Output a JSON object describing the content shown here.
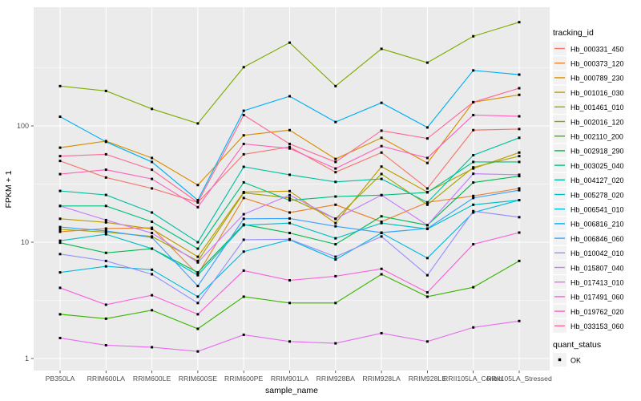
{
  "chart_data": {
    "type": "line",
    "title": "",
    "xlabel": "sample_name",
    "ylabel": "FPKM + 1",
    "y_scale": "log10",
    "y_ticks": [
      1,
      10,
      100
    ],
    "ylim": [
      1,
      1000
    ],
    "grid": true,
    "legend_position": "right",
    "panel_background": "#EBEBEB",
    "gridline_color": "#FFFFFF",
    "point_color": "#000000",
    "categories": [
      "PB350LA",
      "RRIM600LA",
      "RRIM600LE",
      "RRIM600SE",
      "RRIM600PE",
      "RRIM901LA",
      "RRIM928BA",
      "RRIM928LA",
      "RRIM928LE",
      "RRII105LA_Control",
      "RRII105LA_Stressed"
    ],
    "legend": {
      "series_title": "tracking_id",
      "status_title": "quant_status",
      "status_label": "OK"
    },
    "series": [
      {
        "name": "Hb_000331_450",
        "color": "#F8766D",
        "values_fpkm_plus_1": [
          50,
          36,
          29,
          22,
          57,
          66,
          40,
          59,
          29,
          92,
          94
        ]
      },
      {
        "name": "Hb_000373_120",
        "color": "#EA8331",
        "values_fpkm_plus_1": [
          12.3,
          13.1,
          13.3,
          5.3,
          24,
          18,
          21,
          15,
          22,
          25,
          29
        ]
      },
      {
        "name": "Hb_000789_230",
        "color": "#D89000",
        "values_fpkm_plus_1": [
          65,
          74,
          53,
          31,
          83,
          92,
          52,
          79,
          48,
          160,
          185
        ]
      },
      {
        "name": "Hb_001016_030",
        "color": "#C09B00",
        "values_fpkm_plus_1": [
          15.9,
          14.8,
          13,
          7.5,
          27,
          27.5,
          14.6,
          44.7,
          27,
          43,
          59
        ]
      },
      {
        "name": "Hb_001461_010",
        "color": "#A3A500",
        "values_fpkm_plus_1": [
          12.9,
          12.2,
          11.2,
          6.9,
          26.6,
          24,
          15.9,
          38.6,
          21,
          44,
          55
        ]
      },
      {
        "name": "Hb_002016_120",
        "color": "#7CAE00",
        "values_fpkm_plus_1": [
          220,
          200,
          140,
          105,
          320,
          520,
          220,
          460,
          350,
          590,
          780
        ]
      },
      {
        "name": "Hb_002110_200",
        "color": "#39B600",
        "values_fpkm_plus_1": [
          2.4,
          2.2,
          2.6,
          1.8,
          3.4,
          3.0,
          3.0,
          5.3,
          3.4,
          4.1,
          6.9
        ]
      },
      {
        "name": "Hb_002918_290",
        "color": "#00BB4E",
        "values_fpkm_plus_1": [
          9.9,
          8.1,
          8.8,
          5.5,
          14.2,
          12,
          9.6,
          16.7,
          14,
          32.6,
          37
        ]
      },
      {
        "name": "Hb_003025_040",
        "color": "#00BF7D",
        "values_fpkm_plus_1": [
          20.5,
          20.5,
          15,
          8.8,
          32.7,
          22.9,
          24.7,
          25.4,
          26.8,
          49,
          49
        ]
      },
      {
        "name": "Hb_004127_020",
        "color": "#00C1A3",
        "values_fpkm_plus_1": [
          27.6,
          25.5,
          18,
          10,
          44.5,
          38,
          33,
          35,
          22,
          56,
          79
        ]
      },
      {
        "name": "Hb_005278_020",
        "color": "#00BFC4",
        "values_fpkm_plus_1": [
          10.3,
          11.7,
          8.8,
          5.2,
          14,
          14.6,
          10.8,
          14.6,
          13,
          21,
          23
        ]
      },
      {
        "name": "Hb_006541_010",
        "color": "#00BAE0",
        "values_fpkm_plus_1": [
          5.5,
          6.2,
          5.8,
          3.4,
          8.3,
          10.5,
          7.1,
          12,
          7.3,
          18,
          23
        ]
      },
      {
        "name": "Hb_006816_210",
        "color": "#00B0F6",
        "values_fpkm_plus_1": [
          120,
          73,
          49,
          23,
          135,
          180,
          108,
          158,
          97,
          300,
          276
        ]
      },
      {
        "name": "Hb_006846_060",
        "color": "#35A2FF",
        "values_fpkm_plus_1": [
          13.5,
          12.5,
          11,
          4.2,
          15.9,
          16,
          13.7,
          12.1,
          13.1,
          24,
          28
        ]
      },
      {
        "name": "Hb_010042_010",
        "color": "#9590FF",
        "values_fpkm_plus_1": [
          7.9,
          6.9,
          5.3,
          3.0,
          10.5,
          10.6,
          7.5,
          11.2,
          5.2,
          18.5,
          16.4
        ]
      },
      {
        "name": "Hb_015807_040",
        "color": "#C77CFF",
        "values_fpkm_plus_1": [
          20.5,
          15.5,
          12,
          6.7,
          17.4,
          25.4,
          15.9,
          25.4,
          14,
          38.8,
          38
        ]
      },
      {
        "name": "Hb_017413_010",
        "color": "#E76BF3",
        "values_fpkm_plus_1": [
          1.5,
          1.3,
          1.25,
          1.15,
          1.6,
          1.4,
          1.35,
          1.65,
          1.4,
          1.85,
          2.1
        ]
      },
      {
        "name": "Hb_017491_060",
        "color": "#FA62DB",
        "values_fpkm_plus_1": [
          4.05,
          2.9,
          3.5,
          2.4,
          5.7,
          4.7,
          5.1,
          5.9,
          3.7,
          9.6,
          12.1
        ]
      },
      {
        "name": "Hb_019762_020",
        "color": "#FF62BC",
        "values_fpkm_plus_1": [
          38.5,
          42,
          35,
          20,
          70,
          64,
          43,
          67,
          53,
          124,
          121
        ]
      },
      {
        "name": "Hb_033153_060",
        "color": "#FF6A98",
        "values_fpkm_plus_1": [
          55,
          57,
          42,
          22,
          124,
          70,
          49,
          91,
          78,
          160,
          211
        ]
      }
    ]
  }
}
